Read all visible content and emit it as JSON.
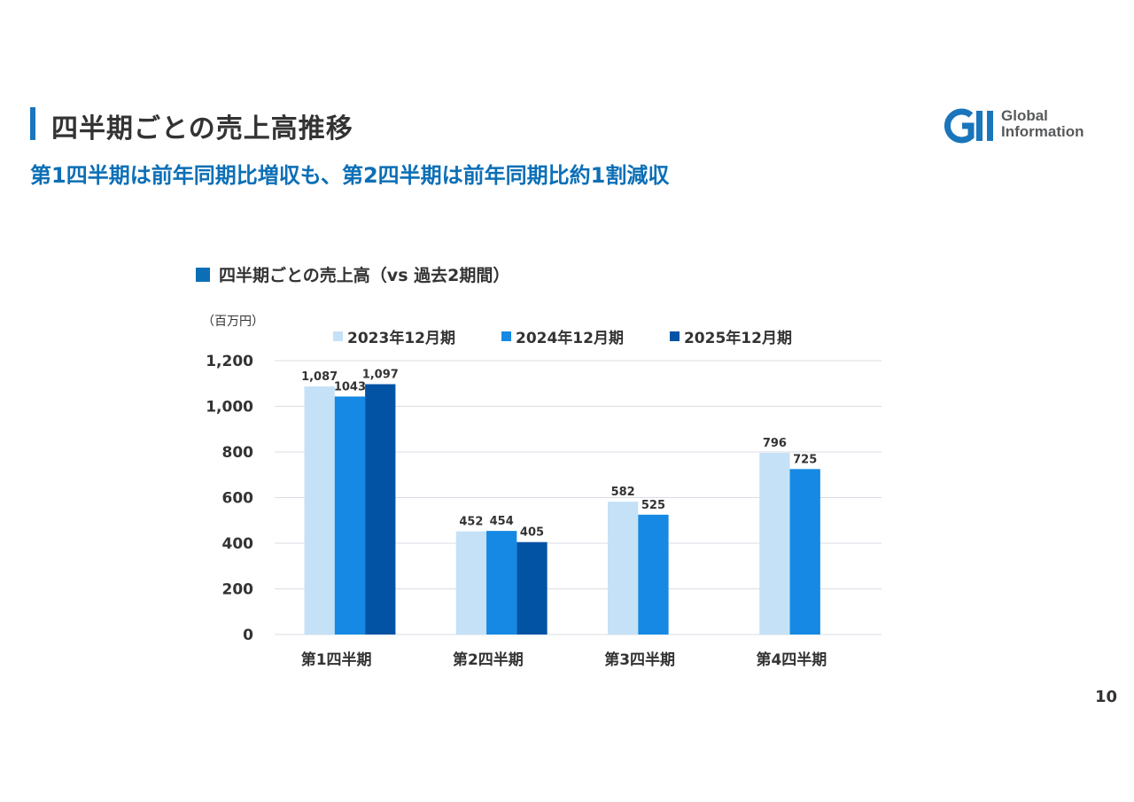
{
  "header": {
    "title": "四半期ごとの売上高推移",
    "subtitle": "第1四半期は前年同期比増収も、第2四半期は前年同期比約1割減収",
    "logo_line1": "Global",
    "logo_line2": "Information",
    "logo_mark": "GII"
  },
  "page_number": "10",
  "colors": {
    "accent": "#1a75bb",
    "subtitle": "#0c6fb6",
    "series_2023": "#c5e1f7",
    "series_2024": "#1589e3",
    "series_2025": "#0353a5",
    "grid": "#d9dde3"
  },
  "chart_data": {
    "type": "bar",
    "title": "四半期ごとの売上高（vs 過去2期間）",
    "unit_label": "（百万円）",
    "categories": [
      "第1四半期",
      "第2四半期",
      "第3四半期",
      "第4四半期"
    ],
    "series": [
      {
        "name": "2023年12月期",
        "values": [
          1087,
          452,
          582,
          796
        ],
        "labels": [
          "1,087",
          "452",
          "582",
          "796"
        ],
        "color": "#c5e1f7"
      },
      {
        "name": "2024年12月期",
        "values": [
          1043,
          454,
          525,
          725
        ],
        "labels": [
          "1043",
          "454",
          "525",
          "725"
        ],
        "color": "#1589e3"
      },
      {
        "name": "2025年12月期",
        "values": [
          1097,
          405,
          null,
          null
        ],
        "labels": [
          "1,097",
          "405",
          "",
          ""
        ],
        "color": "#0353a5"
      }
    ],
    "ylim": [
      0,
      1200
    ],
    "yticks": [
      "0",
      "200",
      "400",
      "600",
      "800",
      "1,000",
      "1,200"
    ],
    "ytick_values": [
      0,
      200,
      400,
      600,
      800,
      1000,
      1200
    ],
    "grid": true,
    "legend_position": "top"
  }
}
